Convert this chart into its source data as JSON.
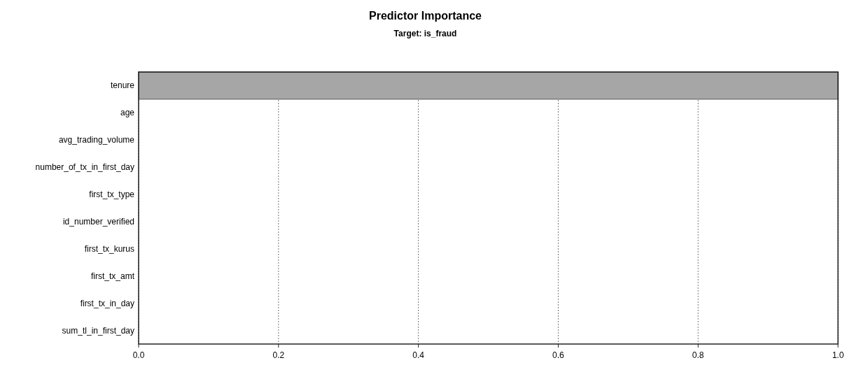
{
  "chart_data": {
    "type": "bar",
    "orientation": "horizontal",
    "title": "Predictor Importance",
    "subtitle": "Target: is_fraud",
    "categories": [
      "tenure",
      "age",
      "avg_trading_volume",
      "number_of_tx_in_first_day",
      "first_tx_type",
      "id_number_verified",
      "first_tx_kurus",
      "first_tx_amt",
      "first_tx_in_day",
      "sum_tl_in_first_day"
    ],
    "values": [
      1.0,
      0,
      0,
      0,
      0,
      0,
      0,
      0,
      0,
      0
    ],
    "color": "#a6a6a6",
    "xlim": [
      0,
      1
    ],
    "xticks": [
      {
        "value": 0,
        "label": "0.0"
      },
      {
        "value": 0.2,
        "label": "0.2"
      },
      {
        "value": 0.4,
        "label": "0.4"
      },
      {
        "value": 0.6,
        "label": "0.6"
      },
      {
        "value": 0.8,
        "label": "0.8"
      },
      {
        "value": 1,
        "label": "1.0"
      }
    ],
    "grid": "x"
  }
}
